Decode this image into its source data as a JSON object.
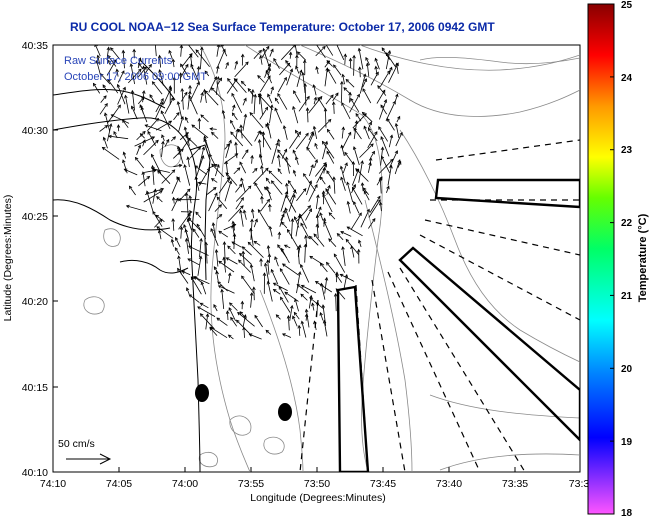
{
  "title": "RU COOL  NOAA−12  Sea Surface Temperature:  October 17, 2006 0942 GMT",
  "annotations": {
    "line1": "Raw Surface Currents",
    "line2": "October 17, 2006 09:00 GMT"
  },
  "axes": {
    "xlabel": "Longitude (Degrees:Minutes)",
    "ylabel": "Latitude (Degrees:Minutes)",
    "xticks": [
      "74:10",
      "74:05",
      "74:00",
      "73:55",
      "73:50",
      "73:45",
      "73:40",
      "73:35",
      "73:3"
    ],
    "yticks": [
      "40:35",
      "40:30",
      "40:25",
      "40:20",
      "40:15",
      "40:10"
    ]
  },
  "scale_label": "50 cm/s",
  "colorbar": {
    "label": "Temperature (°C)",
    "ticks": [
      "25",
      "24",
      "23",
      "22",
      "21",
      "20",
      "19",
      "18"
    ],
    "range": [
      18,
      25
    ]
  },
  "colors": {
    "title": "#0b2aa8",
    "annotation": "#2a46b8",
    "coastline": "#000000",
    "contours": "#888888",
    "vectors": "#000000"
  },
  "icons": {
    "scale_arrow": "right-arrow-icon",
    "marker": "filled-ellipse"
  }
}
